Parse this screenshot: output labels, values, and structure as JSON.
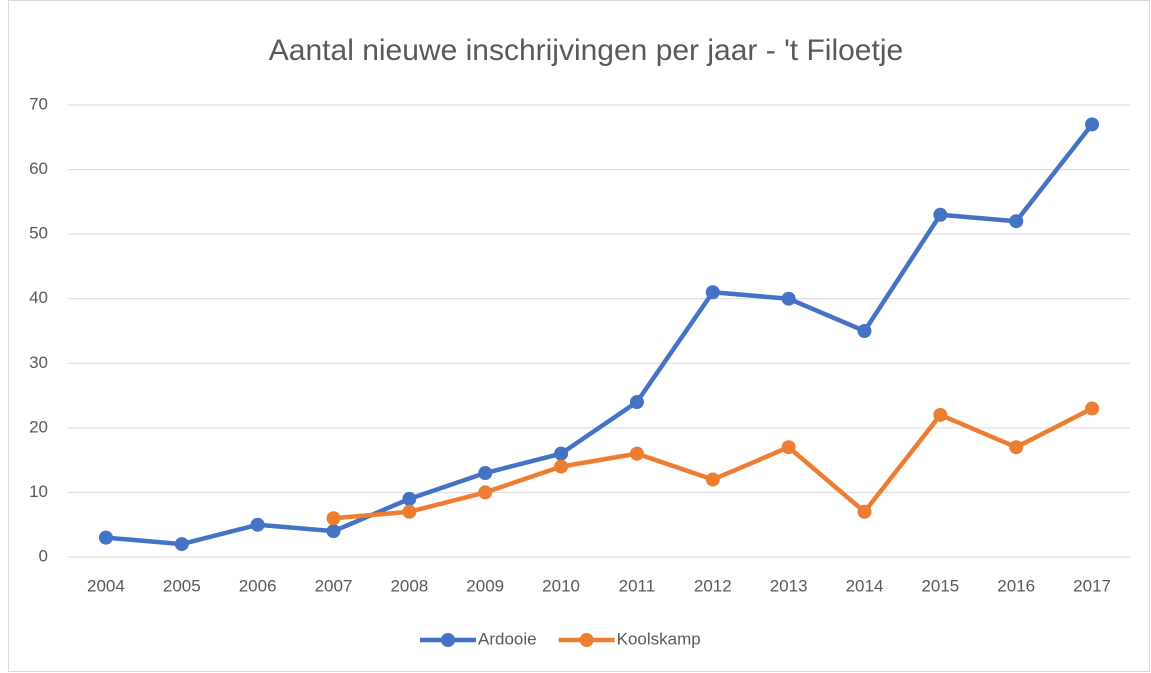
{
  "chart_data": {
    "type": "line",
    "title": "Aantal nieuwe inschrijvingen per jaar - 't Filoetje",
    "categories": [
      "2004",
      "2005",
      "2006",
      "2007",
      "2008",
      "2009",
      "2010",
      "2011",
      "2012",
      "2013",
      "2014",
      "2015",
      "2016",
      "2017"
    ],
    "series": [
      {
        "name": "Ardooie",
        "color": "#4472c4",
        "values": [
          3,
          2,
          5,
          4,
          9,
          13,
          16,
          24,
          41,
          40,
          35,
          53,
          52,
          67
        ]
      },
      {
        "name": "Koolskamp",
        "color": "#ed7d31",
        "values": [
          null,
          null,
          null,
          6,
          7,
          10,
          14,
          16,
          12,
          17,
          7,
          22,
          17,
          23
        ]
      }
    ],
    "ylim": [
      0,
      70
    ],
    "yticks": [
      0,
      10,
      20,
      30,
      40,
      50,
      60,
      70
    ],
    "grid": true,
    "legend": "bottom"
  }
}
